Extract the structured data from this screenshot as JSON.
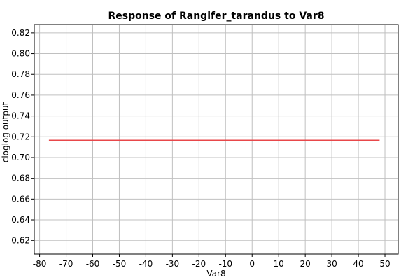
{
  "chart_data": {
    "type": "line",
    "title": "Response of Rangifer_tarandus to Var8",
    "xlabel": "Var8",
    "ylabel": "cloglog output",
    "xlim": [
      -82,
      55
    ],
    "ylim": [
      0.607,
      0.828
    ],
    "x_ticks": [
      -80,
      -70,
      -60,
      -50,
      -40,
      -30,
      -20,
      -10,
      0,
      10,
      20,
      30,
      40,
      50
    ],
    "x_tick_labels": [
      "-80",
      "-70",
      "-60",
      "-50",
      "-40",
      "-30",
      "-20",
      "-10",
      "0",
      "10",
      "20",
      "30",
      "40",
      "50"
    ],
    "y_ticks": [
      0.62,
      0.64,
      0.66,
      0.68,
      0.7,
      0.72,
      0.74,
      0.76,
      0.78,
      0.8,
      0.82
    ],
    "y_tick_labels": [
      "0.62",
      "0.64",
      "0.66",
      "0.68",
      "0.70",
      "0.72",
      "0.74",
      "0.76",
      "0.78",
      "0.80",
      "0.82"
    ],
    "grid": true,
    "series": [
      {
        "color": "#e8474a",
        "x": [
          -76.5,
          48
        ],
        "y": [
          0.7165,
          0.7165
        ]
      }
    ]
  }
}
